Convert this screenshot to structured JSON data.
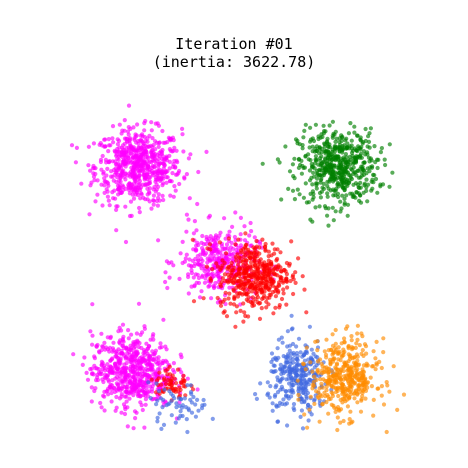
{
  "chart_data": {
    "type": "scatter",
    "title": "Iteration #01",
    "subtitle": "(inertia: 3622.78)",
    "xlabel": "",
    "ylabel": "",
    "axes_visible": false,
    "grid": false,
    "xlim": [
      0,
      100
    ],
    "ylim": [
      0,
      100
    ],
    "colors": {
      "magenta": "#ff00ff",
      "green": "#008000",
      "red": "#ff0000",
      "blue": "#4169e1",
      "orange": "#ff8c00"
    },
    "blobs": [
      {
        "cluster": "magenta",
        "cx": 20,
        "cy": 78,
        "sx": 6.5,
        "sy": 5.5,
        "n": 650
      },
      {
        "cluster": "green",
        "cx": 80,
        "cy": 78,
        "sx": 6.0,
        "sy": 5.5,
        "n": 550
      },
      {
        "cluster": "magenta",
        "cx": 44,
        "cy": 50,
        "sx": 6.0,
        "sy": 5.0,
        "n": 350
      },
      {
        "cluster": "red",
        "cx": 55,
        "cy": 46,
        "sx": 5.5,
        "sy": 5.0,
        "n": 450
      },
      {
        "cluster": "magenta",
        "cx": 18,
        "cy": 18,
        "sx": 6.0,
        "sy": 5.5,
        "n": 600
      },
      {
        "cluster": "red",
        "cx": 30,
        "cy": 14,
        "sx": 2.5,
        "sy": 2.5,
        "n": 60
      },
      {
        "cluster": "blue",
        "cx": 32,
        "cy": 8,
        "sx": 4.5,
        "sy": 3.0,
        "n": 60
      },
      {
        "cluster": "blue",
        "cx": 68,
        "cy": 16,
        "sx": 4.5,
        "sy": 5.5,
        "n": 300
      },
      {
        "cluster": "orange",
        "cx": 82,
        "cy": 16,
        "sx": 5.0,
        "sy": 5.5,
        "n": 420
      }
    ]
  }
}
